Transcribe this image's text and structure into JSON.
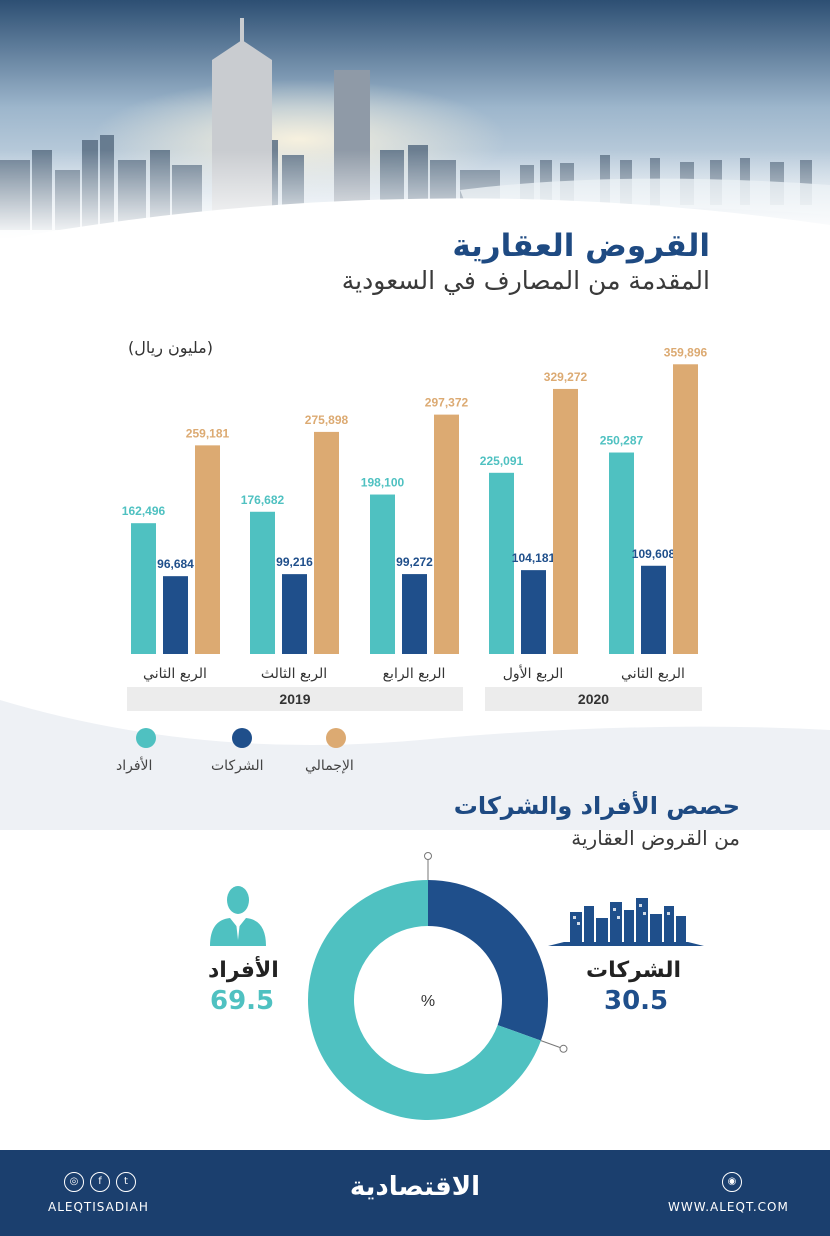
{
  "header": {
    "title": "القروض العقارية",
    "subtitle": "المقدمة من المصارف في السعودية"
  },
  "chart_data": [
    {
      "type": "bar",
      "unit_label": "(مليون ريال)",
      "categories": [
        "الربع الثاني",
        "الربع الثالث",
        "الربع الرابع",
        "الربع الأول",
        "الربع الثاني"
      ],
      "years": [
        {
          "label": "2019",
          "span": [
            0,
            2
          ]
        },
        {
          "label": "2020",
          "span": [
            3,
            4
          ]
        }
      ],
      "series": [
        {
          "name": "الأفراد",
          "color": "#4fc1c1",
          "values": [
            162496,
            176682,
            198100,
            225091,
            250287
          ],
          "labels": [
            "162,496",
            "176,682",
            "198,100",
            "225,091",
            "250,287"
          ]
        },
        {
          "name": "الشركات",
          "color": "#1f4f8b",
          "values": [
            96684,
            99216,
            99272,
            104181,
            109608
          ],
          "labels": [
            "96,684",
            "99,216",
            "99,272",
            "104,181",
            "109,608"
          ]
        },
        {
          "name": "الإجمالي",
          "color": "#dcaa72",
          "values": [
            259181,
            275898,
            297372,
            329272,
            359896
          ],
          "labels": [
            "259,181",
            "275,898",
            "297,372",
            "329,272",
            "359,896"
          ]
        }
      ],
      "grid": false,
      "legend_position": "bottom-left"
    },
    {
      "type": "pie",
      "title": "حصص الأفراد والشركات",
      "subtitle": "من القروض العقارية",
      "center_label": "%",
      "slices": [
        {
          "name": "الشركات",
          "value": 30.5,
          "value_label": "30.5",
          "color": "#1f4f8b"
        },
        {
          "name": "الأفراد",
          "value": 69.5,
          "value_label": "69.5",
          "color": "#4fc1c1"
        }
      ]
    }
  ],
  "footer": {
    "brand": "الاقتصادية",
    "handle": "ALEQTISADIAH",
    "website": "WWW.ALEQT.COM",
    "social_icons": [
      "instagram-icon",
      "facebook-icon",
      "twitter-icon"
    ]
  }
}
